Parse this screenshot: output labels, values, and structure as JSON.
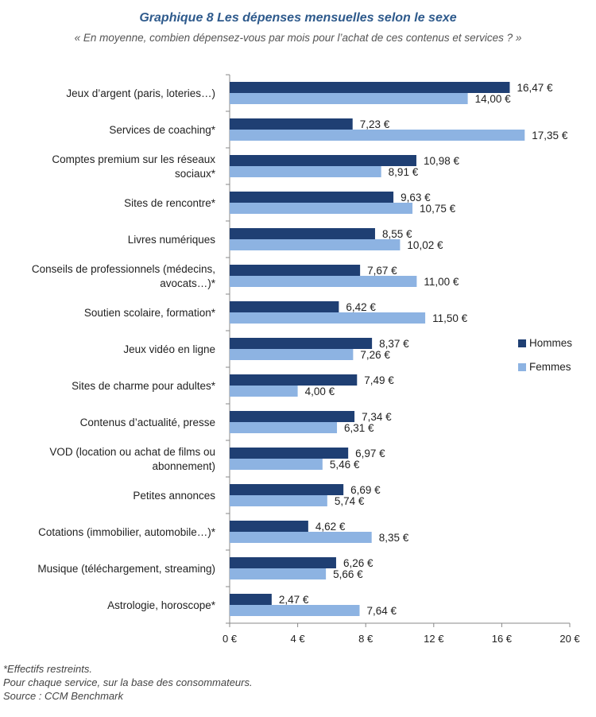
{
  "title": "Graphique 8 Les dépenses mensuelles selon le sexe",
  "subtitle": "« En moyenne, combien dépensez-vous par mois pour l’achat de ces contenus et services ? »",
  "colors": {
    "hommes": "#1f3f73",
    "femmes": "#8db3e2",
    "axis": "#888888"
  },
  "chart_data": {
    "type": "bar",
    "orientation": "horizontal",
    "categories": [
      [
        "Jeux d’argent (paris, loteries…)"
      ],
      [
        "Services de coaching*"
      ],
      [
        "Comptes premium sur les réseaux",
        "sociaux*"
      ],
      [
        "Sites de rencontre*"
      ],
      [
        "Livres numériques"
      ],
      [
        "Conseils de professionnels (médecins,",
        "avocats…)*"
      ],
      [
        "Soutien scolaire, formation*"
      ],
      [
        "Jeux vidéo en ligne"
      ],
      [
        "Sites de charme pour adultes*"
      ],
      [
        "Contenus d’actualité, presse"
      ],
      [
        "VOD (location ou achat de films ou",
        "abonnement)"
      ],
      [
        "Petites annonces"
      ],
      [
        "Cotations (immobilier, automobile…)*"
      ],
      [
        "Musique (téléchargement, streaming)"
      ],
      [
        "Astrologie, horoscope*"
      ]
    ],
    "series": [
      {
        "name": "Hommes",
        "values": [
          16.47,
          7.23,
          10.98,
          9.63,
          8.55,
          7.67,
          6.42,
          8.37,
          7.49,
          7.34,
          6.97,
          6.69,
          4.62,
          6.26,
          2.47
        ],
        "labels": [
          "16,47 €",
          "7,23 €",
          "10,98 €",
          "9,63 €",
          "8,55 €",
          "7,67 €",
          "6,42 €",
          "8,37 €",
          "7,49 €",
          "7,34 €",
          "6,97 €",
          "6,69 €",
          "4,62 €",
          "6,26 €",
          "2,47 €"
        ]
      },
      {
        "name": "Femmes",
        "values": [
          14.0,
          17.35,
          8.91,
          10.75,
          10.02,
          11.0,
          11.5,
          7.26,
          4.0,
          6.31,
          5.46,
          5.74,
          8.35,
          5.66,
          7.64
        ],
        "labels": [
          "14,00 €",
          "17,35 €",
          "8,91 €",
          "10,75 €",
          "10,02 €",
          "11,00 €",
          "11,50 €",
          "7,26 €",
          "4,00 €",
          "6,31 €",
          "5,46 €",
          "5,74 €",
          "8,35 €",
          "5,66 €",
          "7,64 €"
        ]
      }
    ],
    "xlim": [
      0,
      20
    ],
    "xticks": [
      0,
      4,
      8,
      12,
      16,
      20
    ],
    "xtick_labels": [
      "0 €",
      "4 €",
      "8 €",
      "12 €",
      "16 €",
      "20 €"
    ],
    "legend_position": "right",
    "grid": false
  },
  "notes": [
    "*Effectifs restreints.",
    "Pour chaque service, sur la base des consommateurs.",
    "Source : CCM Benchmark"
  ]
}
